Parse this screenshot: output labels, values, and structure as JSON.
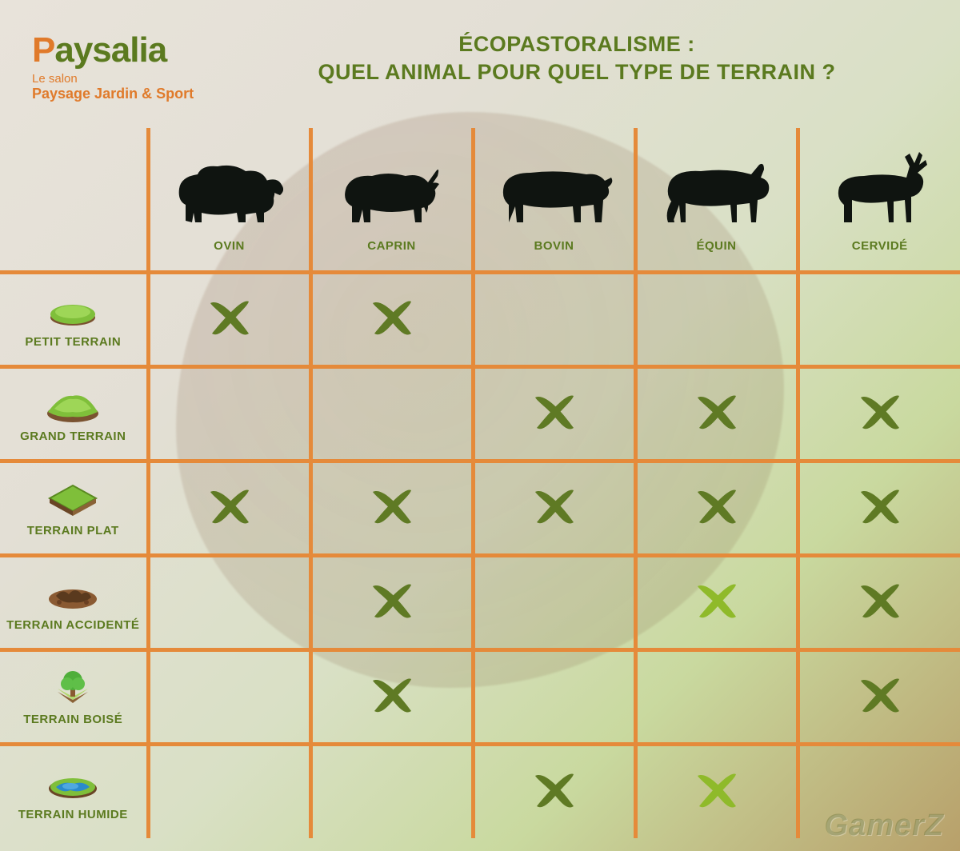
{
  "logo": {
    "brand_prefix": "P",
    "brand_rest": "aysalia",
    "sub1": "Le salon",
    "sub2": "Paysage Jardin & Sport"
  },
  "title": {
    "line1": "ÉCOPASTORALISME :",
    "line2": "QUEL ANIMAL POUR QUEL TYPE DE TERRAIN ?"
  },
  "colors": {
    "accent_orange": "#e07a2a",
    "accent_green": "#5b7a1f",
    "border_orange": "#e58a3a",
    "x_dark": "#5f7a24",
    "x_light": "#8fba2a",
    "bg_base": "#e8e3da"
  },
  "animals": [
    {
      "key": "ovin",
      "label": "OVIN"
    },
    {
      "key": "caprin",
      "label": "CAPRIN"
    },
    {
      "key": "bovin",
      "label": "BOVIN"
    },
    {
      "key": "equin",
      "label": "ÉQUIN"
    },
    {
      "key": "cervide",
      "label": "CERVIDÉ"
    }
  ],
  "terrains": [
    {
      "key": "petit",
      "label": "PETIT TERRAIN"
    },
    {
      "key": "grand",
      "label": "GRAND TERRAIN"
    },
    {
      "key": "plat",
      "label": "TERRAIN PLAT"
    },
    {
      "key": "accidente",
      "label": "TERRAIN ACCIDENTÉ"
    },
    {
      "key": "boise",
      "label": "TERRAIN BOISÉ"
    },
    {
      "key": "humide",
      "label": "TERRAIN HUMIDE"
    }
  ],
  "matrix": [
    [
      "x",
      "x",
      "",
      "",
      ""
    ],
    [
      "",
      "",
      "x",
      "x",
      "x"
    ],
    [
      "x",
      "x",
      "x",
      "x",
      "x"
    ],
    [
      "",
      "x",
      "",
      "xl",
      "x"
    ],
    [
      "",
      "x",
      "",
      "",
      "x"
    ],
    [
      "",
      "",
      "x",
      "xl",
      ""
    ]
  ],
  "watermark": "GamerZ"
}
